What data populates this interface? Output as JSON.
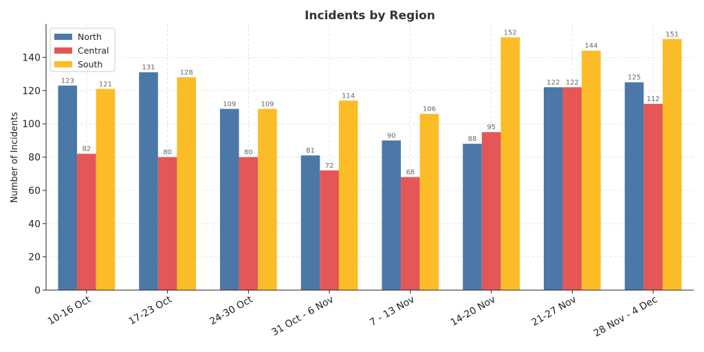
{
  "chart_data": {
    "type": "bar",
    "title": "Incidents by Region",
    "xlabel": "",
    "ylabel": "Number of Incidents",
    "ylim": [
      0,
      160
    ],
    "yticks": [
      0,
      20,
      40,
      60,
      80,
      100,
      120,
      140
    ],
    "grid": true,
    "legend_position": "top-left",
    "categories": [
      "10-16 Oct",
      "17-23 Oct",
      "24-30 Oct",
      "31 Oct - 6 Nov",
      "7 - 13 Nov",
      "14-20 Nov",
      "21-27 Nov",
      "28 Nov - 4 Dec"
    ],
    "series": [
      {
        "name": "North",
        "color": "#4c78a8",
        "values": [
          123,
          131,
          109,
          81,
          90,
          88,
          122,
          125
        ]
      },
      {
        "name": "Central",
        "color": "#e45756",
        "values": [
          82,
          80,
          80,
          72,
          68,
          95,
          122,
          112
        ]
      },
      {
        "name": "South",
        "color": "#fbbc28",
        "values": [
          121,
          128,
          109,
          114,
          106,
          152,
          144,
          151
        ]
      }
    ]
  }
}
